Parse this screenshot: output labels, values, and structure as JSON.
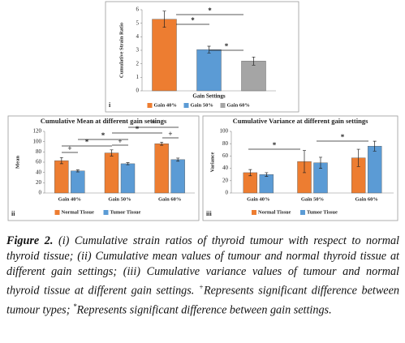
{
  "chart_data": [
    {
      "type": "bar",
      "ylabel": "Cumulative Strain Ratio",
      "xlabel": "Gain Settings",
      "panel": "i",
      "categories": [
        "Gain 40%",
        "Gain 50%",
        "Gain 60%"
      ],
      "values": [
        5.3,
        3.05,
        2.2
      ],
      "errors": [
        0.6,
        0.25,
        0.3
      ],
      "colors": [
        "#ed7d31",
        "#5b9bd5",
        "#a5a5a5"
      ],
      "ylim": [
        0,
        6
      ],
      "yticks": [
        0,
        1,
        2,
        3,
        4,
        5,
        6
      ],
      "annotations": [
        "*",
        "*",
        "*"
      ]
    },
    {
      "type": "bar",
      "title": "Cumulative Mean at different gain settings",
      "ylabel": "Mean",
      "panel": "ii",
      "categories": [
        "Gain 40%",
        "Gain 50%",
        "Gain 60%"
      ],
      "series": [
        {
          "name": "Normal Tissue",
          "color": "#ed7d31",
          "values": [
            63,
            78,
            96
          ],
          "errors": [
            6,
            6,
            3
          ]
        },
        {
          "name": "Tumor Tissue",
          "color": "#5b9bd5",
          "values": [
            43,
            57,
            65
          ],
          "errors": [
            2,
            2,
            3
          ]
        }
      ],
      "ylim": [
        0,
        120
      ],
      "yticks": [
        0,
        20,
        40,
        60,
        80,
        100,
        120
      ],
      "annotations": [
        "+",
        "+",
        "+",
        "*",
        "*",
        "*",
        "*"
      ]
    },
    {
      "type": "bar",
      "title": "Cumulative Variance at different gain settings",
      "ylabel": "Variance",
      "panel": "iii",
      "categories": [
        "Gain 40%",
        "Gain 50%",
        "Gain 60%"
      ],
      "series": [
        {
          "name": "Normal Tissue",
          "color": "#ed7d31",
          "values": [
            33,
            51,
            57
          ],
          "errors": [
            5,
            18,
            14
          ]
        },
        {
          "name": "Tumor Tissue",
          "color": "#5b9bd5",
          "values": [
            30,
            49,
            76
          ],
          "errors": [
            3,
            9,
            8
          ]
        }
      ],
      "ylim": [
        0,
        100
      ],
      "yticks": [
        0,
        20,
        40,
        60,
        80,
        100
      ],
      "annotations": [
        "*",
        "*"
      ]
    }
  ],
  "caption": {
    "label": "Figure 2.",
    "parts": [
      "(i) Cumulative strain ratios of thyroid tumour with respect to normal thyroid tissue; (ii) Cumulative mean values of tumour and normal thyroid tissue at different gain settings; (iii) Cumulative variance values of tumour and normal thyroid tissue at different gain settings. ",
      "+",
      "Represents significant difference between tumour types; ",
      "*",
      "Represents significant difference between gain settings."
    ]
  }
}
